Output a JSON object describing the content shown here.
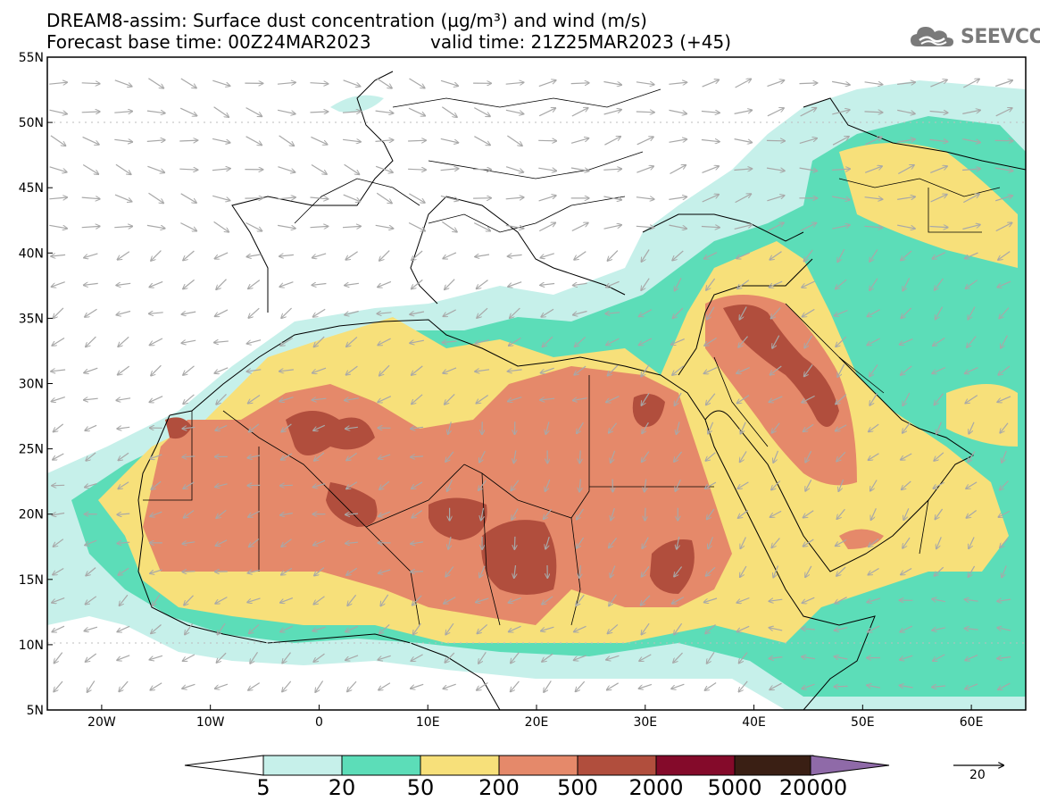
{
  "header": {
    "title_line1": "DREAM8-assim: Surface dust concentration (µg/m³) and wind (m/s)",
    "forecast_base": "Forecast base time: 00Z24MAR2023",
    "valid_time": "valid time: 21Z25MAR2023 (+45)"
  },
  "logo": {
    "text": "SEEVCCC",
    "icon": "cloud-icon"
  },
  "map": {
    "lon_range": [
      -25,
      65
    ],
    "lat_range": [
      5,
      55
    ],
    "lat_ticks": [
      "55N",
      "50N",
      "45N",
      "40N",
      "35N",
      "30N",
      "25N",
      "20N",
      "15N",
      "10N",
      "5N"
    ],
    "lon_ticks": [
      "20W",
      "10W",
      "0",
      "10E",
      "20E",
      "30E",
      "40E",
      "50E",
      "60E"
    ],
    "grid_lines": [
      10,
      50
    ]
  },
  "colorbar": {
    "labels": [
      "5",
      "20",
      "50",
      "200",
      "500",
      "2000",
      "5000",
      "20000"
    ],
    "colors": [
      "#c6f0ea",
      "#5cddb8",
      "#f7e07a",
      "#e5896a",
      "#b14e3d",
      "#840a2a",
      "#3a1f14",
      "#8f6aa8"
    ],
    "colors_note": ""
  },
  "wind_reference": {
    "label": "20",
    "icon": "arrow-right-icon"
  }
}
